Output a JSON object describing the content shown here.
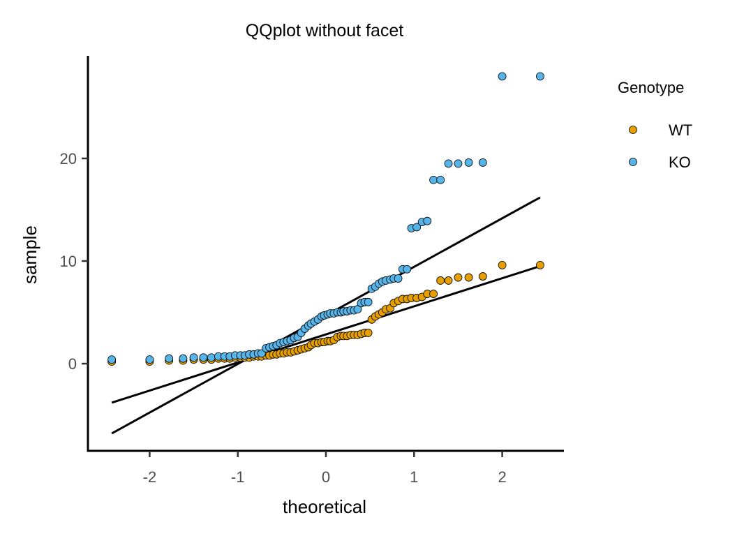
{
  "chart_data": {
    "type": "scatter",
    "title": "QQplot without facet",
    "xlabel": "theoretical",
    "ylabel": "sample",
    "xlim": [
      -2.7,
      2.7
    ],
    "ylim": [
      -8.5,
      30
    ],
    "x_ticks": [
      -2,
      -1,
      0,
      1,
      2
    ],
    "x_tick_labels": [
      "-2",
      "-1",
      "0",
      "1",
      "2"
    ],
    "y_ticks": [
      0,
      10,
      20
    ],
    "y_tick_labels": [
      "0",
      "10",
      "20"
    ],
    "grid": false,
    "legend": {
      "title": "Genotype",
      "position": "right",
      "entries": [
        "WT",
        "KO"
      ]
    },
    "series": [
      {
        "name": "WT",
        "color": "#E69F00",
        "x": [
          -2.43,
          -2.0,
          -1.78,
          -1.62,
          -1.5,
          -1.39,
          -1.3,
          -1.22,
          -1.15,
          -1.09,
          -1.03,
          -0.97,
          -0.92,
          -0.87,
          -0.82,
          -0.77,
          -0.73,
          -0.68,
          -0.64,
          -0.6,
          -0.56,
          -0.52,
          -0.48,
          -0.44,
          -0.4,
          -0.36,
          -0.32,
          -0.28,
          -0.24,
          -0.2,
          -0.17,
          -0.13,
          -0.09,
          -0.05,
          -0.02,
          0.02,
          0.05,
          0.09,
          0.13,
          0.17,
          0.2,
          0.24,
          0.28,
          0.32,
          0.36,
          0.4,
          0.44,
          0.48,
          0.52,
          0.56,
          0.6,
          0.64,
          0.68,
          0.73,
          0.77,
          0.82,
          0.87,
          0.92,
          0.97,
          1.03,
          1.09,
          1.15,
          1.22,
          1.3,
          1.39,
          1.5,
          1.62,
          1.78,
          2.0,
          2.43
        ],
        "y": [
          0.2,
          0.2,
          0.3,
          0.3,
          0.4,
          0.4,
          0.4,
          0.5,
          0.5,
          0.5,
          0.6,
          0.6,
          0.6,
          0.6,
          0.7,
          0.7,
          0.7,
          0.8,
          0.8,
          0.9,
          0.9,
          1.0,
          1.0,
          1.1,
          1.1,
          1.2,
          1.3,
          1.4,
          1.5,
          1.6,
          1.8,
          2.0,
          2.0,
          2.1,
          2.1,
          2.2,
          2.2,
          2.3,
          2.6,
          2.7,
          2.7,
          2.7,
          2.8,
          2.8,
          2.8,
          2.9,
          3.0,
          3.0,
          4.3,
          4.6,
          4.8,
          5.0,
          5.3,
          5.4,
          5.9,
          6.1,
          6.3,
          6.3,
          6.4,
          6.4,
          6.5,
          6.8,
          6.8,
          8.1,
          8.1,
          8.4,
          8.4,
          8.5,
          9.6,
          9.6
        ],
        "qq_line": {
          "x": [
            -2.43,
            2.43
          ],
          "y": [
            -3.8,
            9.5
          ]
        }
      },
      {
        "name": "KO",
        "color": "#56B4E9",
        "x": [
          -2.43,
          -2.0,
          -1.78,
          -1.62,
          -1.5,
          -1.39,
          -1.3,
          -1.22,
          -1.15,
          -1.09,
          -1.03,
          -0.97,
          -0.92,
          -0.87,
          -0.82,
          -0.77,
          -0.73,
          -0.68,
          -0.64,
          -0.6,
          -0.56,
          -0.52,
          -0.48,
          -0.44,
          -0.4,
          -0.36,
          -0.32,
          -0.28,
          -0.24,
          -0.2,
          -0.17,
          -0.13,
          -0.09,
          -0.05,
          -0.02,
          0.02,
          0.05,
          0.09,
          0.13,
          0.17,
          0.2,
          0.24,
          0.28,
          0.32,
          0.36,
          0.4,
          0.44,
          0.48,
          0.52,
          0.56,
          0.6,
          0.64,
          0.68,
          0.73,
          0.77,
          0.82,
          0.87,
          0.92,
          0.97,
          1.03,
          1.09,
          1.15,
          1.22,
          1.3,
          1.39,
          1.5,
          1.62,
          1.78,
          2.0,
          2.43
        ],
        "y": [
          0.4,
          0.4,
          0.5,
          0.5,
          0.6,
          0.6,
          0.6,
          0.7,
          0.7,
          0.7,
          0.8,
          0.8,
          0.8,
          0.9,
          0.9,
          1.0,
          1.0,
          1.5,
          1.6,
          1.7,
          1.8,
          2.0,
          2.1,
          2.2,
          2.3,
          2.5,
          2.6,
          3.0,
          3.4,
          3.7,
          3.9,
          4.1,
          4.3,
          4.6,
          4.7,
          4.8,
          4.9,
          4.9,
          5.0,
          5.0,
          5.1,
          5.1,
          5.2,
          5.2,
          5.3,
          5.9,
          6.0,
          6.0,
          7.3,
          7.5,
          7.8,
          8.0,
          8.1,
          8.2,
          8.3,
          8.3,
          9.2,
          9.2,
          13.2,
          13.3,
          13.8,
          13.9,
          17.9,
          17.9,
          19.5,
          19.5,
          19.6,
          19.6,
          28.0,
          28.0
        ],
        "qq_line": {
          "x": [
            -2.43,
            2.43
          ],
          "y": [
            -6.8,
            16.2
          ]
        }
      }
    ]
  }
}
